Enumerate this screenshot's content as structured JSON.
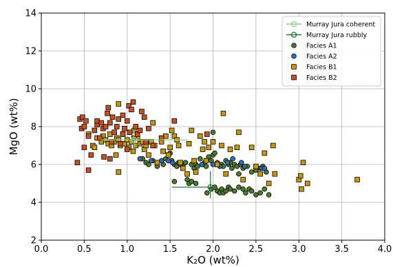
{
  "chart_data": {
    "type": "scatter",
    "title": "",
    "xlabel": "K₂O (wt%)",
    "ylabel": "MgO (wt%)",
    "xlim": [
      0,
      4
    ],
    "ylim": [
      2,
      14
    ],
    "xticks": [
      "0.0",
      "0.5",
      "1.0",
      "1.5",
      "2.0",
      "2.5",
      "3.0",
      "3.5",
      "4.0"
    ],
    "yticks": [
      "2",
      "4",
      "6",
      "8",
      "10",
      "12",
      "14"
    ],
    "grid": true,
    "legend_position": "top-right",
    "legend": [
      {
        "label": "Murray Jura coherent",
        "kind": "errorbar",
        "color": "#8fd48f"
      },
      {
        "label": "Murray Jura rubbly",
        "kind": "errorbar",
        "color": "#1f7a3c"
      },
      {
        "label": "Facies A1",
        "kind": "marker",
        "shape": "circle",
        "color": "#4c7a2c"
      },
      {
        "label": "Facies A2",
        "kind": "marker",
        "shape": "circle",
        "color": "#2f6db5"
      },
      {
        "label": "Facies B1",
        "kind": "marker",
        "shape": "square",
        "color": "#c8960c"
      },
      {
        "label": "Facies B2",
        "kind": "marker",
        "shape": "square",
        "color": "#c8501e"
      }
    ],
    "error_bars": [
      {
        "name": "Murray Jura coherent",
        "color": "#8fd48f",
        "x": 1.08,
        "y": 7.3,
        "xerr": [
          0.38,
          0.62
        ],
        "yerr": [
          0.45,
          0.45
        ]
      },
      {
        "name": "Murray Jura rubbly",
        "color": "#1f7a3c",
        "x": 1.97,
        "y": 4.8,
        "xerr": [
          0.45,
          0.0
        ],
        "yerr": [
          0.6,
          0.85
        ]
      }
    ],
    "series": [
      {
        "name": "Facies A1",
        "marker": "circle",
        "color": "#4c7a2c",
        "points": [
          [
            1.18,
            6.3
          ],
          [
            1.22,
            6.1
          ],
          [
            1.25,
            6.0
          ],
          [
            1.3,
            6.2
          ],
          [
            1.35,
            5.9
          ],
          [
            1.42,
            6.0
          ],
          [
            1.45,
            6.3
          ],
          [
            1.5,
            6.6
          ],
          [
            1.52,
            6.2
          ],
          [
            1.55,
            6.0
          ],
          [
            1.58,
            5.9
          ],
          [
            1.6,
            6.1
          ],
          [
            1.63,
            6.0
          ],
          [
            1.65,
            5.9
          ],
          [
            1.68,
            6.1
          ],
          [
            1.7,
            5.2
          ],
          [
            1.72,
            5.0
          ],
          [
            1.75,
            6.0
          ],
          [
            1.78,
            5.8
          ],
          [
            1.8,
            6.0
          ],
          [
            1.82,
            5.9
          ],
          [
            1.85,
            6.3
          ],
          [
            1.88,
            6.0
          ],
          [
            1.9,
            6.1
          ],
          [
            1.92,
            5.9
          ],
          [
            1.95,
            6.4
          ],
          [
            1.98,
            6.2
          ],
          [
            2.0,
            6.5
          ],
          [
            2.0,
            7.7
          ],
          [
            2.02,
            6.6
          ],
          [
            2.05,
            6.1
          ],
          [
            2.1,
            6.0
          ],
          [
            2.12,
            5.9
          ],
          [
            2.15,
            6.2
          ],
          [
            2.18,
            6.0
          ],
          [
            2.2,
            6.1
          ],
          [
            2.22,
            5.8
          ],
          [
            2.25,
            6.0
          ],
          [
            2.28,
            5.9
          ],
          [
            2.3,
            5.5
          ],
          [
            2.32,
            6.0
          ],
          [
            2.35,
            5.8
          ],
          [
            2.4,
            5.9
          ],
          [
            2.45,
            5.6
          ],
          [
            2.5,
            5.7
          ],
          [
            2.55,
            5.8
          ],
          [
            2.58,
            5.9
          ],
          [
            2.62,
            5.6
          ],
          [
            1.93,
            4.5
          ],
          [
            1.98,
            4.7
          ],
          [
            2.02,
            4.8
          ],
          [
            2.05,
            4.6
          ],
          [
            2.08,
            4.5
          ],
          [
            2.1,
            4.7
          ],
          [
            2.12,
            4.5
          ],
          [
            2.15,
            4.6
          ],
          [
            2.18,
            4.8
          ],
          [
            2.2,
            4.7
          ],
          [
            2.25,
            4.6
          ],
          [
            2.3,
            4.8
          ],
          [
            2.35,
            4.7
          ],
          [
            2.38,
            4.5
          ],
          [
            2.42,
            4.7
          ],
          [
            2.45,
            4.6
          ],
          [
            2.5,
            4.4
          ],
          [
            2.55,
            4.5
          ],
          [
            2.6,
            4.7
          ],
          [
            2.65,
            4.4
          ],
          [
            1.75,
            5.1
          ],
          [
            1.8,
            5.0
          ],
          [
            1.55,
            5.1
          ]
        ]
      },
      {
        "name": "Facies A2",
        "marker": "circle",
        "color": "#2f6db5",
        "points": [
          [
            1.15,
            6.3
          ],
          [
            1.28,
            6.2
          ],
          [
            1.4,
            6.2
          ],
          [
            1.48,
            6.2
          ],
          [
            1.53,
            6.1
          ],
          [
            1.62,
            6.0
          ],
          [
            1.87,
            6.0
          ],
          [
            2.0,
            6.0
          ],
          [
            2.08,
            5.9
          ],
          [
            2.17,
            6.1
          ],
          [
            2.23,
            6.3
          ],
          [
            2.33,
            6.1
          ],
          [
            2.37,
            5.9
          ],
          [
            2.57,
            5.8
          ],
          [
            2.6,
            5.8
          ]
        ]
      },
      {
        "name": "Facies B1",
        "marker": "square",
        "color": "#c8960c",
        "points": [
          [
            0.55,
            7.6
          ],
          [
            0.6,
            7.0
          ],
          [
            0.62,
            6.9
          ],
          [
            0.65,
            7.4
          ],
          [
            0.7,
            7.2
          ],
          [
            0.72,
            7.5
          ],
          [
            0.75,
            7.3
          ],
          [
            0.78,
            7.1
          ],
          [
            0.8,
            7.6
          ],
          [
            0.82,
            7.0
          ],
          [
            0.85,
            7.2
          ],
          [
            0.87,
            6.5
          ],
          [
            0.88,
            7.4
          ],
          [
            0.9,
            7.3
          ],
          [
            0.9,
            9.2
          ],
          [
            0.9,
            5.6
          ],
          [
            0.92,
            7.0
          ],
          [
            0.95,
            7.6
          ],
          [
            0.97,
            7.1
          ],
          [
            1.0,
            7.3
          ],
          [
            1.02,
            6.9
          ],
          [
            1.05,
            7.2
          ],
          [
            1.07,
            6.7
          ],
          [
            1.08,
            7.8
          ],
          [
            1.1,
            7.0
          ],
          [
            1.12,
            7.4
          ],
          [
            1.15,
            7.1
          ],
          [
            1.18,
            7.2
          ],
          [
            1.2,
            6.8
          ],
          [
            1.22,
            7.0
          ],
          [
            1.25,
            6.5
          ],
          [
            1.28,
            7.2
          ],
          [
            1.3,
            8.2
          ],
          [
            1.32,
            7.0
          ],
          [
            1.35,
            6.1
          ],
          [
            1.4,
            7.2
          ],
          [
            1.42,
            6.7
          ],
          [
            1.45,
            7.5
          ],
          [
            1.48,
            6.5
          ],
          [
            1.5,
            6.9
          ],
          [
            1.52,
            7.8
          ],
          [
            1.55,
            7.5
          ],
          [
            1.58,
            7.3
          ],
          [
            1.6,
            7.0
          ],
          [
            1.62,
            6.1
          ],
          [
            1.65,
            5.8
          ],
          [
            1.7,
            5.5
          ],
          [
            1.72,
            7.1
          ],
          [
            1.75,
            7.8
          ],
          [
            1.78,
            6.2
          ],
          [
            1.8,
            5.6
          ],
          [
            1.85,
            7.5
          ],
          [
            1.88,
            6.8
          ],
          [
            1.9,
            7.2
          ],
          [
            1.92,
            6.2
          ],
          [
            1.95,
            6.9
          ],
          [
            2.0,
            7.2
          ],
          [
            2.05,
            6.0
          ],
          [
            2.1,
            7.0
          ],
          [
            2.12,
            8.7
          ],
          [
            2.15,
            5.5
          ],
          [
            2.2,
            6.8
          ],
          [
            2.28,
            6.9
          ],
          [
            2.3,
            7.7
          ],
          [
            2.35,
            5.2
          ],
          [
            2.45,
            6.9
          ],
          [
            2.5,
            5.9
          ],
          [
            2.55,
            5.5
          ],
          [
            2.6,
            6.6
          ],
          [
            2.65,
            5.0
          ],
          [
            2.7,
            7.0
          ],
          [
            2.72,
            5.5
          ],
          [
            3.0,
            5.2
          ],
          [
            3.02,
            5.4
          ],
          [
            3.03,
            4.7
          ],
          [
            3.05,
            6.1
          ],
          [
            3.1,
            5.0
          ],
          [
            3.68,
            5.2
          ]
        ]
      },
      {
        "name": "Facies B2",
        "marker": "square",
        "color": "#c8501e",
        "points": [
          [
            0.42,
            6.1
          ],
          [
            0.45,
            8.4
          ],
          [
            0.47,
            7.9
          ],
          [
            0.48,
            8.5
          ],
          [
            0.5,
            8.0
          ],
          [
            0.5,
            6.9
          ],
          [
            0.52,
            8.3
          ],
          [
            0.55,
            7.5
          ],
          [
            0.55,
            5.7
          ],
          [
            0.58,
            6.5
          ],
          [
            0.62,
            7.8
          ],
          [
            0.65,
            8.1
          ],
          [
            0.65,
            8.3
          ],
          [
            0.68,
            7.4
          ],
          [
            0.7,
            8.2
          ],
          [
            0.72,
            7.9
          ],
          [
            0.73,
            6.4
          ],
          [
            0.75,
            8.0
          ],
          [
            0.77,
            8.7
          ],
          [
            0.78,
            9.0
          ],
          [
            0.8,
            8.2
          ],
          [
            0.8,
            6.3
          ],
          [
            0.82,
            7.2
          ],
          [
            0.83,
            8.5
          ],
          [
            0.85,
            7.7
          ],
          [
            0.88,
            8.0
          ],
          [
            0.9,
            8.4
          ],
          [
            0.92,
            7.1
          ],
          [
            0.95,
            8.6
          ],
          [
            0.95,
            7.6
          ],
          [
            0.97,
            7.9
          ],
          [
            1.0,
            8.3
          ],
          [
            1.0,
            6.8
          ],
          [
            1.02,
            9.1
          ],
          [
            1.03,
            7.7
          ],
          [
            1.05,
            8.9
          ],
          [
            1.07,
            9.3
          ],
          [
            1.08,
            7.4
          ],
          [
            1.1,
            8.0
          ],
          [
            1.12,
            7.6
          ],
          [
            1.15,
            7.8
          ],
          [
            1.17,
            8.8
          ],
          [
            1.2,
            8.5
          ],
          [
            1.22,
            7.2
          ],
          [
            1.25,
            7.9
          ],
          [
            1.3,
            7.0
          ],
          [
            1.4,
            7.4
          ],
          [
            1.55,
            8.3
          ],
          [
            1.93,
            7.6
          ]
        ]
      }
    ]
  }
}
